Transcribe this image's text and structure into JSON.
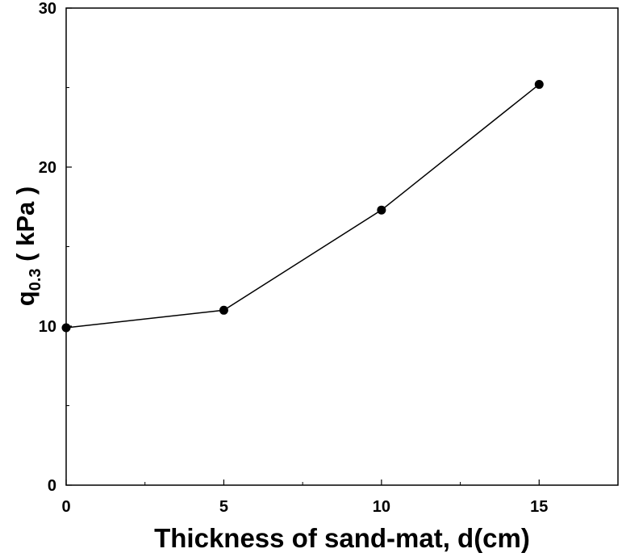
{
  "chart_data": {
    "type": "line",
    "title": "",
    "xlabel": "Thickness of sand-mat, d(cm)",
    "ylabel": {
      "base": "q",
      "subscript": "0.3",
      "unit": " ( kPa )"
    },
    "xlim": [
      0,
      17.5
    ],
    "ylim": [
      0,
      30
    ],
    "x_ticks": [
      0,
      5,
      10,
      15
    ],
    "x_tick_labels": [
      "0",
      "5",
      "10",
      "15"
    ],
    "x_minor_ticks": [
      2.5,
      7.5,
      12.5,
      17.5
    ],
    "y_ticks": [
      0,
      10,
      20,
      30
    ],
    "y_tick_labels": [
      "0",
      "10",
      "20",
      "30"
    ],
    "y_minor_ticks": [
      5,
      15,
      25
    ],
    "grid": false,
    "series": [
      {
        "x": [
          0,
          5,
          10,
          15
        ],
        "values": [
          9.9,
          11.0,
          17.3,
          25.2
        ],
        "color": "#000000",
        "marker": "circle"
      }
    ]
  }
}
